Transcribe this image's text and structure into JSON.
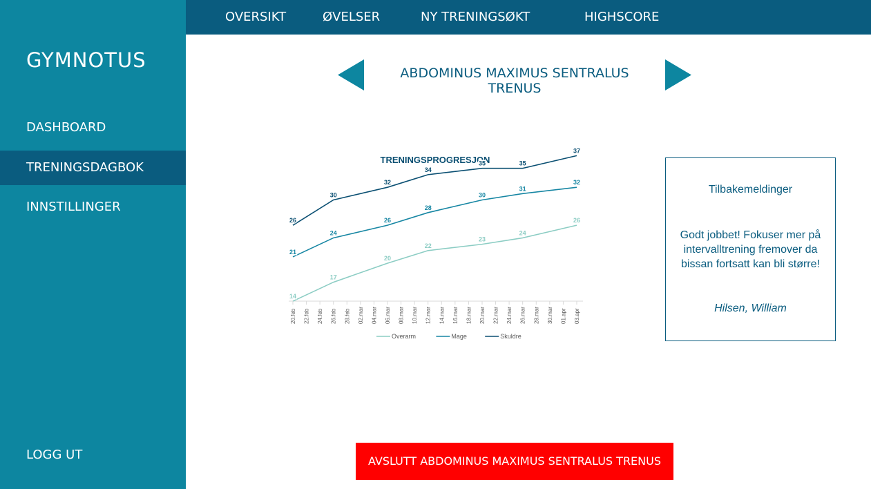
{
  "sidebar": {
    "logo": "GYMNOTUS",
    "items": [
      {
        "label": "DASHBOARD"
      },
      {
        "label": "TRENINGSDAGBOK"
      },
      {
        "label": "INNSTILLINGER"
      }
    ],
    "logout": "LOGG UT"
  },
  "topnav": {
    "items": [
      {
        "label": "OVERSIKT"
      },
      {
        "label": "ØVELSER"
      },
      {
        "label": "NY TRENINGSØKT"
      },
      {
        "label": "HIGHSCORE"
      }
    ]
  },
  "exercise": {
    "title": "ABDOMINUS MAXIMUS SENTRALUS TRENUS"
  },
  "colors": {
    "sidebar": "#0d86a0",
    "sidebar_active": "#0a5c7f",
    "topnav": "#0a5c7f",
    "accent": "#0a5c7f",
    "arrow": "#0d86a0",
    "danger": "#ff0000"
  },
  "icons": {
    "prev": "triangle-left-icon",
    "next": "triangle-right-icon"
  },
  "chart_data": {
    "type": "line",
    "title": "TRENINGSPROGRESJON",
    "x": [
      "20.feb",
      "22.feb",
      "24.feb",
      "26.feb",
      "28.feb",
      "02.mar",
      "04.mar",
      "06.mar",
      "08.mar",
      "10.mar",
      "12.mar",
      "14.mar",
      "16.mar",
      "18.mar",
      "20.mar",
      "22.mar",
      "24.mar",
      "26.mar",
      "28.mar",
      "30.mar",
      "01.apr",
      "03.apr"
    ],
    "series": [
      {
        "name": "Overarm",
        "color": "#8ccdc4",
        "points": [
          {
            "x": "20.feb",
            "y": 14
          },
          {
            "x": "26.feb",
            "y": 17
          },
          {
            "x": "06.mar",
            "y": 20
          },
          {
            "x": "12.mar",
            "y": 22
          },
          {
            "x": "20.mar",
            "y": 23
          },
          {
            "x": "26.mar",
            "y": 24
          },
          {
            "x": "03.apr",
            "y": 26
          }
        ]
      },
      {
        "name": "Mage",
        "color": "#1686a3",
        "points": [
          {
            "x": "20.feb",
            "y": 21
          },
          {
            "x": "26.feb",
            "y": 24
          },
          {
            "x": "06.mar",
            "y": 26
          },
          {
            "x": "12.mar",
            "y": 28
          },
          {
            "x": "20.mar",
            "y": 30
          },
          {
            "x": "26.mar",
            "y": 31
          },
          {
            "x": "03.apr",
            "y": 32
          }
        ]
      },
      {
        "name": "Skuldre",
        "color": "#0a4f72",
        "points": [
          {
            "x": "20.feb",
            "y": 26
          },
          {
            "x": "26.feb",
            "y": 30
          },
          {
            "x": "06.mar",
            "y": 32
          },
          {
            "x": "12.mar",
            "y": 34
          },
          {
            "x": "20.mar",
            "y": 35
          },
          {
            "x": "26.mar",
            "y": 35
          },
          {
            "x": "03.apr",
            "y": 37
          }
        ]
      }
    ],
    "legend": "bottom",
    "grid": false
  },
  "feedback": {
    "title": "Tilbakemeldinger",
    "message": "Godt jobbet! Fokuser mer på intervalltrening fremover da bissan fortsatt kan bli større!",
    "signature": "Hilsen, William"
  },
  "end_button": "AVSLUTT ABDOMINUS MAXIMUS SENTRALUS TRENUS"
}
